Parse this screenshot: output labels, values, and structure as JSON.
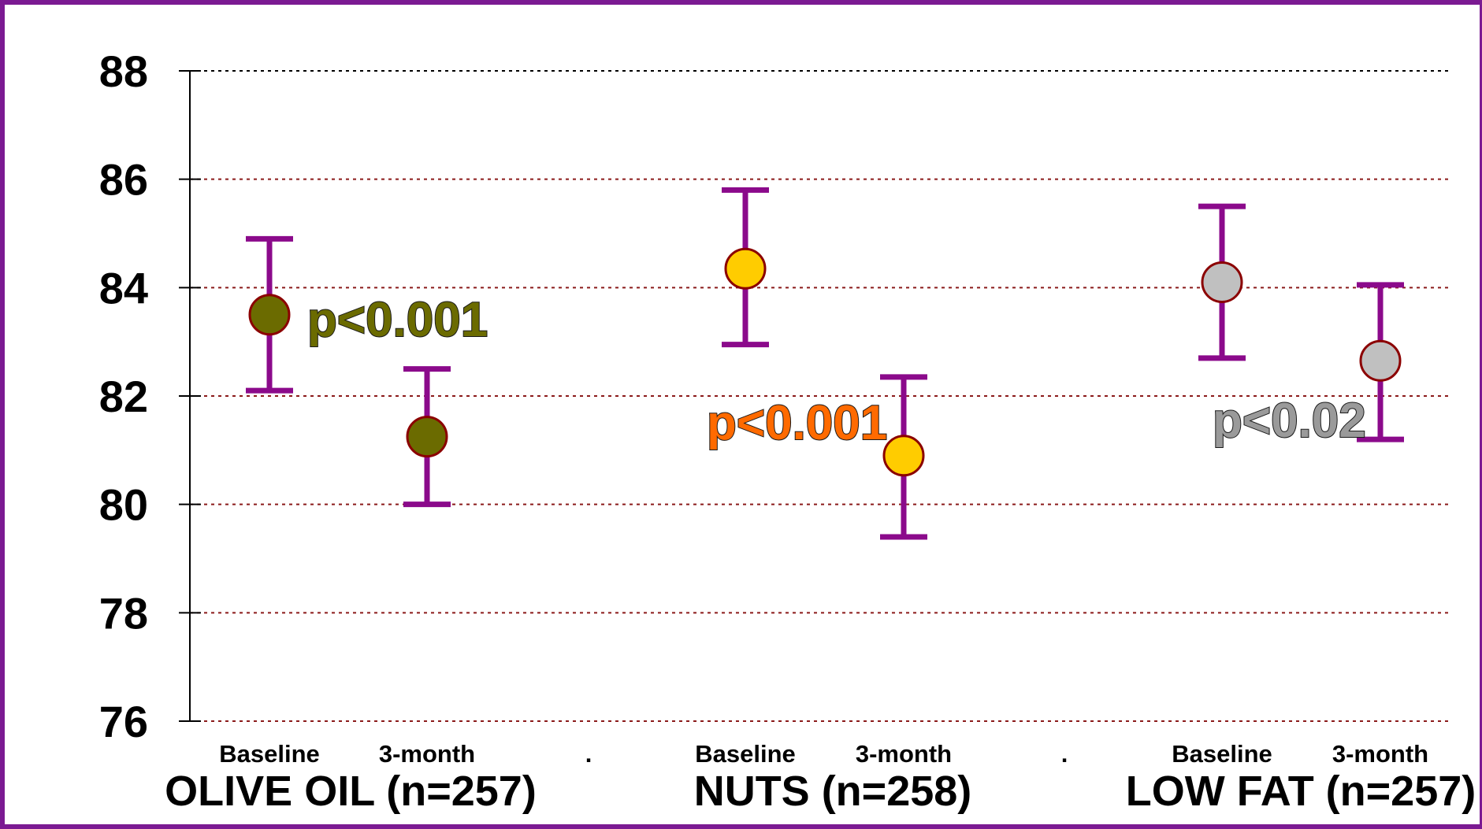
{
  "chart_data": {
    "type": "scatter",
    "title": "",
    "xlabel": "",
    "ylabel": "",
    "ylim": [
      76,
      88
    ],
    "yticks": [
      "88",
      "86",
      "84",
      "82",
      "80",
      "78",
      "76"
    ],
    "grid": true,
    "groups": [
      {
        "label": "OLIVE OIL (n=257)",
        "color": "#6b6b00",
        "points": [
          {
            "category": "Baseline",
            "value": 83.5,
            "err_low": 82.1,
            "err_high": 84.9
          },
          {
            "category": "3-month",
            "value": 81.25,
            "err_low": 80.0,
            "err_high": 82.5
          }
        ],
        "p_value": {
          "text": "p<0.001",
          "color": "#6b6b00"
        }
      },
      {
        "label": "NUTS (n=258)",
        "color": "#ffcc00",
        "points": [
          {
            "category": "Baseline",
            "value": 84.35,
            "err_low": 82.95,
            "err_high": 85.8
          },
          {
            "category": "3-month",
            "value": 80.9,
            "err_low": 79.4,
            "err_high": 82.35
          }
        ],
        "p_value": {
          "text": "p<0.001",
          "color": "#ff6a00"
        }
      },
      {
        "label": "LOW FAT (n=257)",
        "color": "#c0c0c0",
        "points": [
          {
            "category": "Baseline",
            "value": 84.1,
            "err_low": 82.7,
            "err_high": 85.5
          },
          {
            "category": "3-month",
            "value": 82.65,
            "err_low": 81.2,
            "err_high": 84.05
          }
        ],
        "p_value": {
          "text": "p<0.02",
          "color": "#9a9a9a"
        }
      }
    ],
    "separators": [
      ".",
      "."
    ],
    "errorbar_color": "#8b0a8b",
    "gridline_color": "#8b1a1a"
  }
}
